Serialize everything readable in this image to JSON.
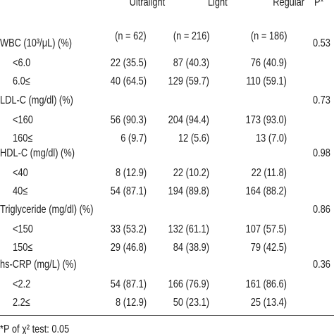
{
  "header": {
    "columns": [
      "Ultralight",
      "Light",
      "Regular",
      "P*"
    ],
    "n": [
      "(n = 62)",
      "(n = 216)",
      "(n = 186)"
    ]
  },
  "rows": [
    {
      "label": "WBC (10³/μL) (%)",
      "p": "0.53",
      "subrows": [
        {
          "label": "<6.0",
          "values": [
            "22 (35.5)",
            "87 (40.3)",
            "76 (40.9)"
          ]
        },
        {
          "label": "6.0≤",
          "values": [
            "40 (64.5)",
            "129 (59.7)",
            "110 (59.1)"
          ]
        }
      ]
    },
    {
      "label": "LDL-C (mg/dl) (%)",
      "p": "0.73",
      "subrows": [
        {
          "label": "<160",
          "values": [
            "56 (90.3)",
            "204 (94.4)",
            "173 (93.0)"
          ]
        },
        {
          "label": "160≤",
          "values": [
            "6 (9.7)",
            "12 (5.6)",
            "13 (7.0)"
          ]
        }
      ]
    },
    {
      "label": "HDL-C (mg/dl) (%)",
      "p": "0.98",
      "subrows": [
        {
          "label": "<40",
          "values": [
            "8 (12.9)",
            "22 (10.2)",
            "22 (11.8)"
          ]
        },
        {
          "label": "40≤",
          "values": [
            "54 (87.1)",
            "194 (89.8)",
            "164 (88.2)"
          ]
        }
      ]
    },
    {
      "label": "Triglyceride (mg/dl) (%)",
      "p": "0.86",
      "subrows": [
        {
          "label": "<150",
          "values": [
            "33 (53.2)",
            "132 (61.1)",
            "107 (57.5)"
          ]
        },
        {
          "label": "150≤",
          "values": [
            "29 (46.8)",
            "84 (38.9)",
            "79 (42.5)"
          ]
        }
      ]
    },
    {
      "label": "hs-CRP (mg/L) (%)",
      "p": "0.36",
      "subrows": [
        {
          "label": "<2.2",
          "values": [
            "54 (87.1)",
            "166 (76.9)",
            "161 (86.6)"
          ]
        },
        {
          "label": "2.2≤",
          "values": [
            "8 (12.9)",
            "50 (23.1)",
            "25 (13.4)"
          ]
        }
      ]
    }
  ],
  "footnote": "*P of χ² test: 0.05"
}
